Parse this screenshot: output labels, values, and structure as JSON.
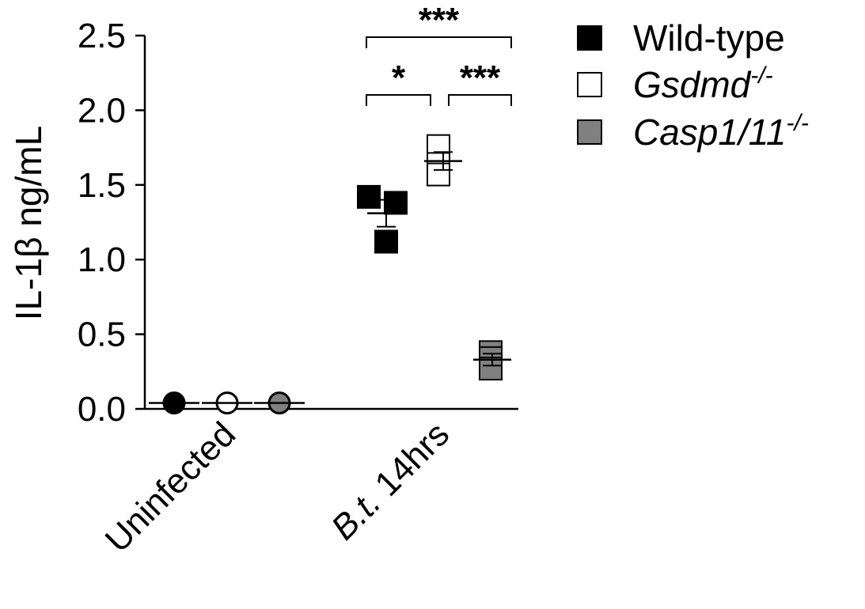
{
  "chart_data": {
    "type": "scatter",
    "ylabel_prefix": "IL-1",
    "ylabel_greek": "β",
    "ylabel_suffix": " ng/mL",
    "ylim": [
      0,
      2.5
    ],
    "yticks": [
      "0.0",
      "0.5",
      "1.0",
      "1.5",
      "2.0",
      "2.5"
    ],
    "ytick_values": [
      0,
      0.5,
      1.0,
      1.5,
      2.0,
      2.5
    ],
    "categories": [
      {
        "label": "Uninfected",
        "italic_part": "",
        "rest": "Uninfected"
      },
      {
        "label": "B.t. 14hrs",
        "italic_part": "B.t.",
        "rest": " 14hrs"
      }
    ],
    "series": [
      {
        "name": "Wild-type",
        "name_italic": "",
        "name_sup": "",
        "color": "#000000",
        "uninfected": {
          "points": [
            0.04
          ],
          "mean": 0.04,
          "sem": 0
        },
        "infected": {
          "points": [
            1.42,
            1.38,
            1.12
          ],
          "mean": 1.31,
          "sem": 0.09
        }
      },
      {
        "name": "",
        "name_italic": "Gsdmd",
        "name_sup": "-/-",
        "color": "#ffffff",
        "uninfected": {
          "points": [
            0.04
          ],
          "mean": 0.04,
          "sem": 0
        },
        "infected": {
          "points": [
            1.76,
            1.64,
            1.57
          ],
          "mean": 1.66,
          "sem": 0.06
        }
      },
      {
        "name": "",
        "name_italic": "Casp1/11",
        "name_sup": "-/-",
        "color": "#808080",
        "uninfected": {
          "points": [
            0.04
          ],
          "mean": 0.04,
          "sem": 0
        },
        "infected": {
          "points": [
            0.38,
            0.34,
            0.27
          ],
          "mean": 0.33,
          "sem": 0.04
        }
      }
    ],
    "significance": [
      {
        "from": 0,
        "to": 2,
        "label": "***"
      },
      {
        "from": 0,
        "to": 1,
        "label": "*"
      },
      {
        "from": 1,
        "to": 2,
        "label": "***"
      }
    ],
    "legend_position": "top-right"
  }
}
